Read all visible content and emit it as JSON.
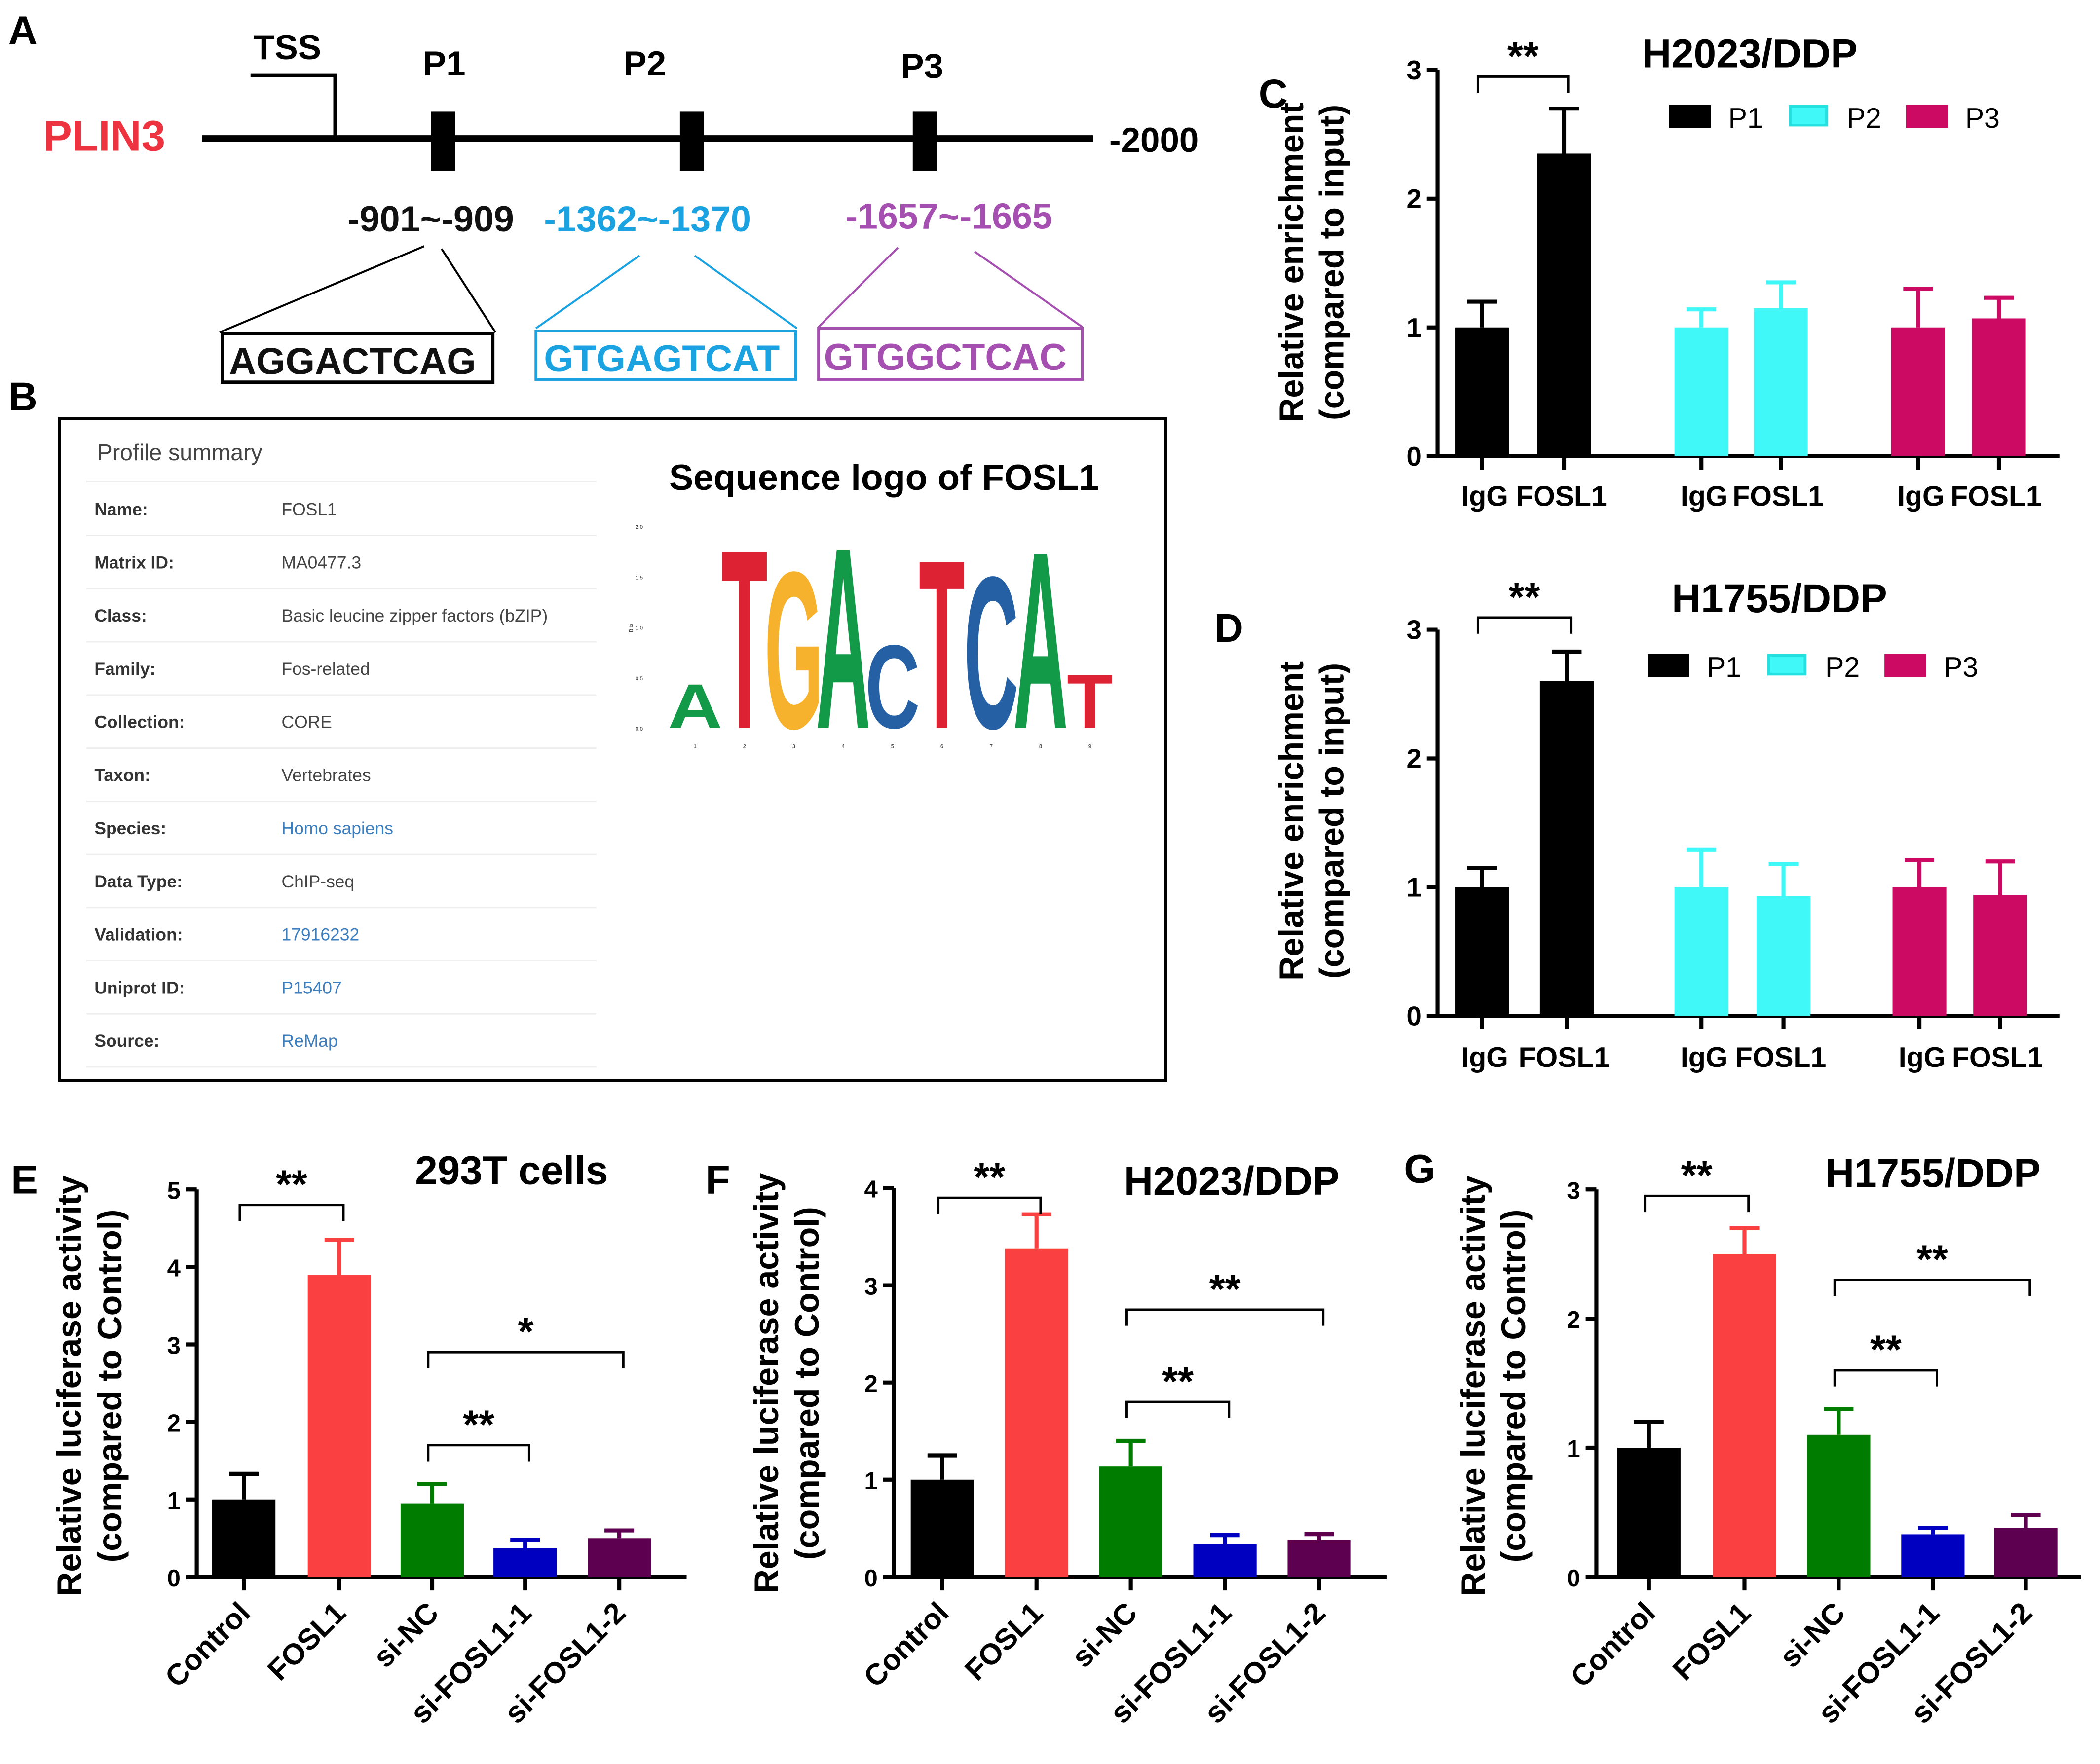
{
  "panel_labels": {
    "A": "A",
    "B": "B",
    "C": "C",
    "D": "D",
    "E": "E",
    "F": "F",
    "G": "G"
  },
  "panelA": {
    "gene": "PLIN3",
    "gene_color": "#ee3340",
    "tss_label": "TSS",
    "end_label": "-2000",
    "sites": [
      {
        "name": "P1",
        "range": "-901~-909",
        "sequence": "AGGACTCAG",
        "color": "#111111"
      },
      {
        "name": "P2",
        "range": "-1362~-1370",
        "sequence": "GTGAGTCAT",
        "color": "#1aa3e0"
      },
      {
        "name": "P3",
        "range": "-1657~-1665",
        "sequence": "GTGGCTCAC",
        "color": "#a550b0"
      }
    ]
  },
  "panelB": {
    "profile_title": "Profile summary",
    "rows": [
      {
        "key": "Name:",
        "value": "FOSL1",
        "link": false
      },
      {
        "key": "Matrix ID:",
        "value": "MA0477.3",
        "link": false
      },
      {
        "key": "Class:",
        "value": "Basic leucine zipper factors (bZIP)",
        "link": false
      },
      {
        "key": "Family:",
        "value": "Fos-related",
        "link": false
      },
      {
        "key": "Collection:",
        "value": "CORE",
        "link": false
      },
      {
        "key": "Taxon:",
        "value": "Vertebrates",
        "link": false
      },
      {
        "key": "Species:",
        "value": "Homo sapiens",
        "link": true
      },
      {
        "key": "Data Type:",
        "value": "ChIP-seq",
        "link": false
      },
      {
        "key": "Validation:",
        "value": "17916232",
        "link": true
      },
      {
        "key": "Uniprot ID:",
        "value": "P15407",
        "link": true
      },
      {
        "key": "Source:",
        "value": "ReMap",
        "link": true
      }
    ],
    "link_color": "#3d7ebf",
    "logo_title": "Sequence logo of FOSL1",
    "logo_ylabel": "Bits",
    "logo_yticks": [
      "0.0",
      "0.5",
      "1.0",
      "1.5",
      "2.0"
    ],
    "logo_positions": [
      "1",
      "2",
      "3",
      "4",
      "5",
      "6",
      "7",
      "8",
      "9"
    ],
    "logo_consensus": [
      "A",
      "T",
      "G",
      "A",
      "C",
      "T",
      "C",
      "A",
      "T"
    ],
    "logo_heights_bits": [
      0.45,
      1.82,
      1.6,
      1.85,
      0.85,
      1.72,
      1.55,
      1.8,
      0.55
    ]
  },
  "chart_data": [
    {
      "id": "C",
      "type": "bar",
      "title": "H2023/DDP",
      "ylabel": "Relative enrichment\n(compared to input)",
      "ylabel_line1": "Relative enrichment",
      "ylabel_line2": "(compared to input)",
      "ylim": [
        0,
        3
      ],
      "yticks": [
        "0",
        "1",
        "2",
        "3"
      ],
      "categories": [
        "IgG",
        "FOSL1",
        "IgG",
        "FOSL1",
        "IgG",
        "FOSL1"
      ],
      "groups": [
        "P1",
        "P2",
        "P3"
      ],
      "legend": [
        {
          "name": "P1",
          "color": "#000000"
        },
        {
          "name": "P2",
          "color": "#40f8f8"
        },
        {
          "name": "P3",
          "color": "#cc0a64"
        }
      ],
      "legend_position": "top-right",
      "values": [
        1.0,
        2.35,
        1.0,
        1.15,
        1.0,
        1.07
      ],
      "error_upper": [
        1.2,
        2.7,
        1.14,
        1.35,
        1.3,
        1.23
      ],
      "colors": [
        "#000000",
        "#000000",
        "#40f8f8",
        "#40f8f8",
        "#cc0a64",
        "#cc0a64"
      ],
      "significance": [
        {
          "from": 0,
          "to": 1,
          "label": "**"
        }
      ]
    },
    {
      "id": "D",
      "type": "bar",
      "title": "H1755/DDP",
      "ylabel_line1": "Relative enrichment",
      "ylabel_line2": "(compared to input)",
      "ylim": [
        0,
        3
      ],
      "yticks": [
        "0",
        "1",
        "2",
        "3"
      ],
      "categories": [
        "IgG",
        "FOSL1",
        "IgG",
        "FOSL1",
        "IgG",
        "FOSL1"
      ],
      "groups": [
        "P1",
        "P2",
        "P3"
      ],
      "legend": [
        {
          "name": "P1",
          "color": "#000000"
        },
        {
          "name": "P2",
          "color": "#40f8f8"
        },
        {
          "name": "P3",
          "color": "#cc0a64"
        }
      ],
      "legend_position": "top-right",
      "values": [
        1.0,
        2.6,
        1.0,
        0.93,
        1.0,
        0.94
      ],
      "error_upper": [
        1.15,
        2.83,
        1.29,
        1.18,
        1.21,
        1.2
      ],
      "colors": [
        "#000000",
        "#000000",
        "#40f8f8",
        "#40f8f8",
        "#cc0a64",
        "#cc0a64"
      ],
      "significance": [
        {
          "from": 0,
          "to": 1,
          "label": "**"
        }
      ]
    },
    {
      "id": "E",
      "type": "bar",
      "title": "293T cells",
      "ylabel_line1": "Relative luciferase activity",
      "ylabel_line2": "(compared to Control)",
      "ylim": [
        0,
        5
      ],
      "yticks": [
        "0",
        "1",
        "2",
        "3",
        "4",
        "5"
      ],
      "categories": [
        "Control",
        "FOSL1",
        "si-NC",
        "si-FOSL1-1",
        "si-FOSL1-2"
      ],
      "values": [
        1.0,
        3.9,
        0.95,
        0.37,
        0.5
      ],
      "error_upper": [
        1.33,
        4.35,
        1.2,
        0.48,
        0.6
      ],
      "colors": [
        "#000000",
        "#fa4040",
        "#007d00",
        "#0000c0",
        "#5e0050"
      ],
      "significance": [
        {
          "from": 0,
          "to": 1,
          "label": "**",
          "level": 4.8
        },
        {
          "from": 2,
          "to": 3,
          "label": "**",
          "level": 1.7
        },
        {
          "from": 2,
          "to": 4,
          "label": "*",
          "level": 2.9
        }
      ]
    },
    {
      "id": "F",
      "type": "bar",
      "title": "H2023/DDP",
      "ylabel_line1": "Relative luciferase activity",
      "ylabel_line2": "(compared to Control)",
      "ylim": [
        0,
        4
      ],
      "yticks": [
        "0",
        "1",
        "2",
        "3",
        "4"
      ],
      "categories": [
        "Control",
        "FOSL1",
        "si-NC",
        "si-FOSL1-1",
        "si-FOSL1-2"
      ],
      "values": [
        1.0,
        3.38,
        1.14,
        0.34,
        0.38
      ],
      "error_upper": [
        1.25,
        3.73,
        1.4,
        0.43,
        0.44
      ],
      "colors": [
        "#000000",
        "#fa4040",
        "#007d00",
        "#0000c0",
        "#5e0050"
      ],
      "significance": [
        {
          "from": 0,
          "to": 1,
          "label": "**",
          "level": 3.9
        },
        {
          "from": 2,
          "to": 3,
          "label": "**",
          "level": 1.8
        },
        {
          "from": 2,
          "to": 4,
          "label": "**",
          "level": 2.75
        }
      ]
    },
    {
      "id": "G",
      "type": "bar",
      "title": "H1755/DDP",
      "ylabel_line1": "Relative luciferase activity",
      "ylabel_line2": "(compared to Control)",
      "ylim": [
        0,
        3
      ],
      "yticks": [
        "0",
        "1",
        "2",
        "3"
      ],
      "categories": [
        "Control",
        "FOSL1",
        "si-NC",
        "si-FOSL1-1",
        "si-FOSL1-2"
      ],
      "values": [
        1.0,
        2.5,
        1.1,
        0.33,
        0.38
      ],
      "error_upper": [
        1.2,
        2.7,
        1.3,
        0.38,
        0.48
      ],
      "colors": [
        "#000000",
        "#fa4040",
        "#007d00",
        "#0000c0",
        "#5e0050"
      ],
      "significance": [
        {
          "from": 0,
          "to": 1,
          "label": "**",
          "level": 2.95
        },
        {
          "from": 2,
          "to": 3,
          "label": "**",
          "level": 1.6
        },
        {
          "from": 2,
          "to": 4,
          "label": "**",
          "level": 2.3
        }
      ]
    }
  ]
}
